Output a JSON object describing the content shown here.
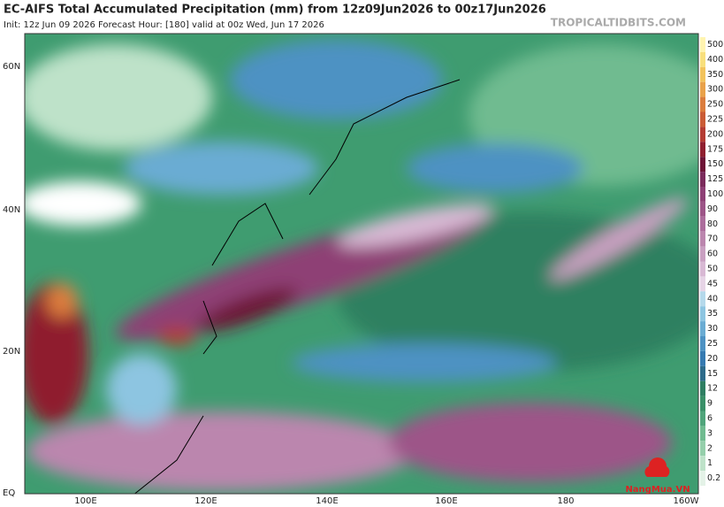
{
  "header": {
    "title": "EC-AIFS Total Accumulated Precipitation (mm) from 12z09Jun2026 to 00z17Jun2026",
    "subtitle": "Init: 12z Jun 09 2026   Forecast Hour: [180]   valid at 00z Wed, Jun 17 2026",
    "site": "TROPICALTIDBITS.COM"
  },
  "map": {
    "lat_labels": [
      "60N",
      "40N",
      "20N",
      "EQ"
    ],
    "lon_labels": [
      "100E",
      "120E",
      "140E",
      "160E",
      "180",
      "160W"
    ]
  },
  "colorbar": {
    "levels": [
      {
        "label": "500",
        "color": "#fff4b0"
      },
      {
        "label": "400",
        "color": "#f8df7c"
      },
      {
        "label": "350",
        "color": "#f2c35c"
      },
      {
        "label": "300",
        "color": "#e9a24a"
      },
      {
        "label": "250",
        "color": "#db7d3d"
      },
      {
        "label": "225",
        "color": "#ca5c36"
      },
      {
        "label": "200",
        "color": "#b43c33"
      },
      {
        "label": "175",
        "color": "#8f1f2f"
      },
      {
        "label": "150",
        "color": "#6d1436"
      },
      {
        "label": "125",
        "color": "#7b2b5c"
      },
      {
        "label": "100",
        "color": "#8e4075"
      },
      {
        "label": "90",
        "color": "#9d5588"
      },
      {
        "label": "80",
        "color": "#ac6d9c"
      },
      {
        "label": "70",
        "color": "#bb86ae"
      },
      {
        "label": "60",
        "color": "#c9a0c1"
      },
      {
        "label": "50",
        "color": "#d8b9d4"
      },
      {
        "label": "45",
        "color": "#e6d4e6"
      },
      {
        "label": "40",
        "color": "#b5d9eb"
      },
      {
        "label": "35",
        "color": "#8dc5e1"
      },
      {
        "label": "30",
        "color": "#6aacd3"
      },
      {
        "label": "25",
        "color": "#4d92c3"
      },
      {
        "label": "20",
        "color": "#367ab1"
      },
      {
        "label": "15",
        "color": "#2d6b8b"
      },
      {
        "label": "12",
        "color": "#2f7f62"
      },
      {
        "label": "9",
        "color": "#3a9068"
      },
      {
        "label": "6",
        "color": "#50a57b"
      },
      {
        "label": "3",
        "color": "#70bb90"
      },
      {
        "label": "2",
        "color": "#95cfab"
      },
      {
        "label": "1",
        "color": "#bee2c9"
      },
      {
        "label": "0.2",
        "color": "#e4f2e7"
      }
    ]
  },
  "watermark": "NangMua.VN"
}
